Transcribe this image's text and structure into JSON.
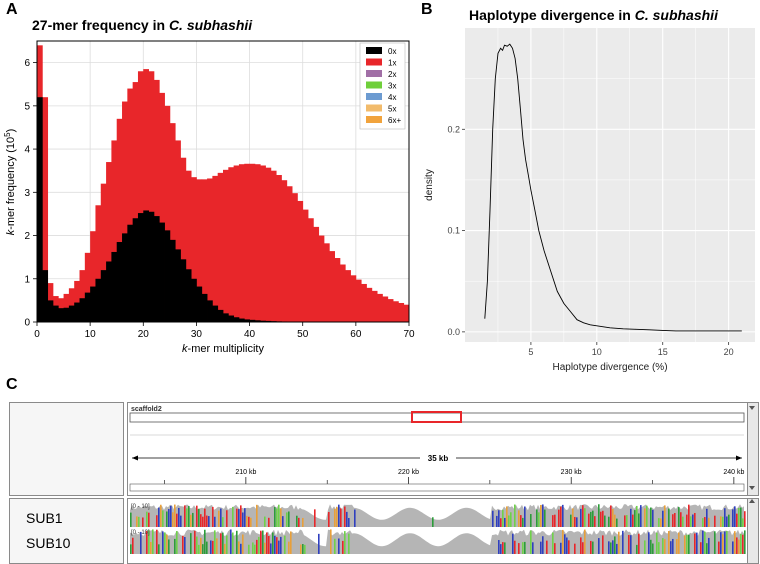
{
  "panels": {
    "a": {
      "letter": "A"
    },
    "b": {
      "letter": "B"
    },
    "c": {
      "letter": "C"
    }
  },
  "chart_data": [
    {
      "type": "bar",
      "title_prefix": "27-mer frequency in ",
      "title_species": "C. subhashii",
      "xlabel_italic": "k",
      "xlabel_rest": "-mer multiplicity",
      "ylabel_italic": "k",
      "ylabel_rest": "-mer frequency (10",
      "ylabel_sup": "5",
      "ylabel_close": ")",
      "xlim": [
        0,
        70
      ],
      "ylim": [
        0,
        6.5
      ],
      "xticks": [
        "0",
        "10",
        "20",
        "30",
        "40",
        "50",
        "60",
        "70"
      ],
      "yticks": [
        "0",
        "1",
        "2",
        "3",
        "4",
        "5",
        "6"
      ],
      "grid": true,
      "legend_position": "top-right",
      "legend": [
        {
          "label": "0x",
          "color": "#000000"
        },
        {
          "label": "1x",
          "color": "#e8262a"
        },
        {
          "label": "2x",
          "color": "#a16fa6"
        },
        {
          "label": "3x",
          "color": "#6fcf3a"
        },
        {
          "label": "4x",
          "color": "#6c9bd1"
        },
        {
          "label": "5x",
          "color": "#f2bb6b"
        },
        {
          "label": "6x+",
          "color": "#f1a33c"
        }
      ],
      "x": [
        1,
        2,
        3,
        4,
        5,
        6,
        7,
        8,
        9,
        10,
        11,
        12,
        13,
        14,
        15,
        16,
        17,
        18,
        19,
        20,
        21,
        22,
        23,
        24,
        25,
        26,
        27,
        28,
        29,
        30,
        31,
        32,
        33,
        34,
        35,
        36,
        37,
        38,
        39,
        40,
        41,
        42,
        43,
        44,
        45,
        46,
        47,
        48,
        49,
        50,
        51,
        52,
        53,
        54,
        55,
        56,
        57,
        58,
        59,
        60,
        61,
        62,
        63,
        64,
        65,
        66,
        67,
        68,
        69,
        70
      ],
      "series": [
        {
          "label": "1x",
          "color": "#e8262a",
          "values": [
            6.4,
            5.2,
            0.9,
            0.6,
            0.55,
            0.65,
            0.78,
            0.95,
            1.2,
            1.6,
            2.1,
            2.7,
            3.2,
            3.7,
            4.2,
            4.7,
            5.1,
            5.4,
            5.55,
            5.8,
            5.85,
            5.8,
            5.6,
            5.3,
            5.0,
            4.6,
            4.2,
            3.8,
            3.5,
            3.35,
            3.3,
            3.3,
            3.32,
            3.38,
            3.45,
            3.52,
            3.58,
            3.62,
            3.65,
            3.66,
            3.66,
            3.65,
            3.62,
            3.57,
            3.5,
            3.4,
            3.28,
            3.14,
            2.98,
            2.8,
            2.6,
            2.4,
            2.2,
            2.0,
            1.82,
            1.64,
            1.48,
            1.33,
            1.2,
            1.08,
            0.98,
            0.88,
            0.79,
            0.72,
            0.65,
            0.59,
            0.53,
            0.48,
            0.44,
            0.4
          ]
        },
        {
          "label": "0x",
          "color": "#000000",
          "values": [
            5.2,
            1.2,
            0.5,
            0.38,
            0.32,
            0.33,
            0.38,
            0.45,
            0.55,
            0.68,
            0.82,
            1.0,
            1.2,
            1.4,
            1.62,
            1.85,
            2.05,
            2.25,
            2.4,
            2.52,
            2.58,
            2.55,
            2.45,
            2.3,
            2.12,
            1.9,
            1.68,
            1.45,
            1.22,
            1.0,
            0.82,
            0.65,
            0.5,
            0.38,
            0.28,
            0.2,
            0.15,
            0.11,
            0.08,
            0.06,
            0.05,
            0.04,
            0.03,
            0.025,
            0.02,
            0.015,
            0.012,
            0.01,
            0.008,
            0.006,
            0.005,
            0.004,
            0.003,
            0.002,
            0.002,
            0.001,
            0.001,
            0.001,
            0,
            0,
            0,
            0,
            0,
            0,
            0,
            0,
            0,
            0,
            0,
            0
          ]
        }
      ]
    },
    {
      "type": "line",
      "title_prefix": "Haplotype divergence in ",
      "title_species": "C. subhashii",
      "xlabel": "Haplotype divergence (%)",
      "ylabel": "density",
      "xlim": [
        0,
        22
      ],
      "ylim": [
        -0.01,
        0.3
      ],
      "xticks": [
        "5",
        "10",
        "15",
        "20"
      ],
      "yticks": [
        "0.0",
        "0.1",
        "0.2"
      ],
      "grid": true,
      "series": [
        {
          "x": [
            1.5,
            1.7,
            1.9,
            2.1,
            2.3,
            2.5,
            2.7,
            2.85,
            3.0,
            3.2,
            3.4,
            3.6,
            3.8,
            4.0,
            4.2,
            4.4,
            4.6,
            4.8,
            5.0,
            5.3,
            5.6,
            6.0,
            6.5,
            7.0,
            7.5,
            8.0,
            8.5,
            9.0,
            9.5,
            10.0,
            11.0,
            12.0,
            13.0,
            14.0,
            15.0,
            16.0,
            17.0,
            18.0,
            19.0,
            20.0,
            21.0
          ],
          "y": [
            0.013,
            0.05,
            0.12,
            0.2,
            0.25,
            0.275,
            0.28,
            0.278,
            0.283,
            0.282,
            0.284,
            0.28,
            0.27,
            0.25,
            0.22,
            0.19,
            0.17,
            0.155,
            0.14,
            0.12,
            0.1,
            0.08,
            0.06,
            0.04,
            0.028,
            0.02,
            0.012,
            0.009,
            0.007,
            0.006,
            0.004,
            0.003,
            0.0025,
            0.002,
            0.0015,
            0.001,
            0.001,
            0.001,
            0.001,
            0.001,
            0.001
          ]
        }
      ]
    },
    {
      "type": "genome_browser",
      "scaffold": "scaffold2",
      "span_label": "35 kb",
      "ruler_ticks": [
        "210 kb",
        "220 kb",
        "230 kb",
        "240 kb"
      ],
      "tracks": [
        {
          "name": "SUB1",
          "range": "[0 - 10]"
        },
        {
          "name": "SUB10",
          "range": "[0 - 10]"
        }
      ]
    }
  ]
}
